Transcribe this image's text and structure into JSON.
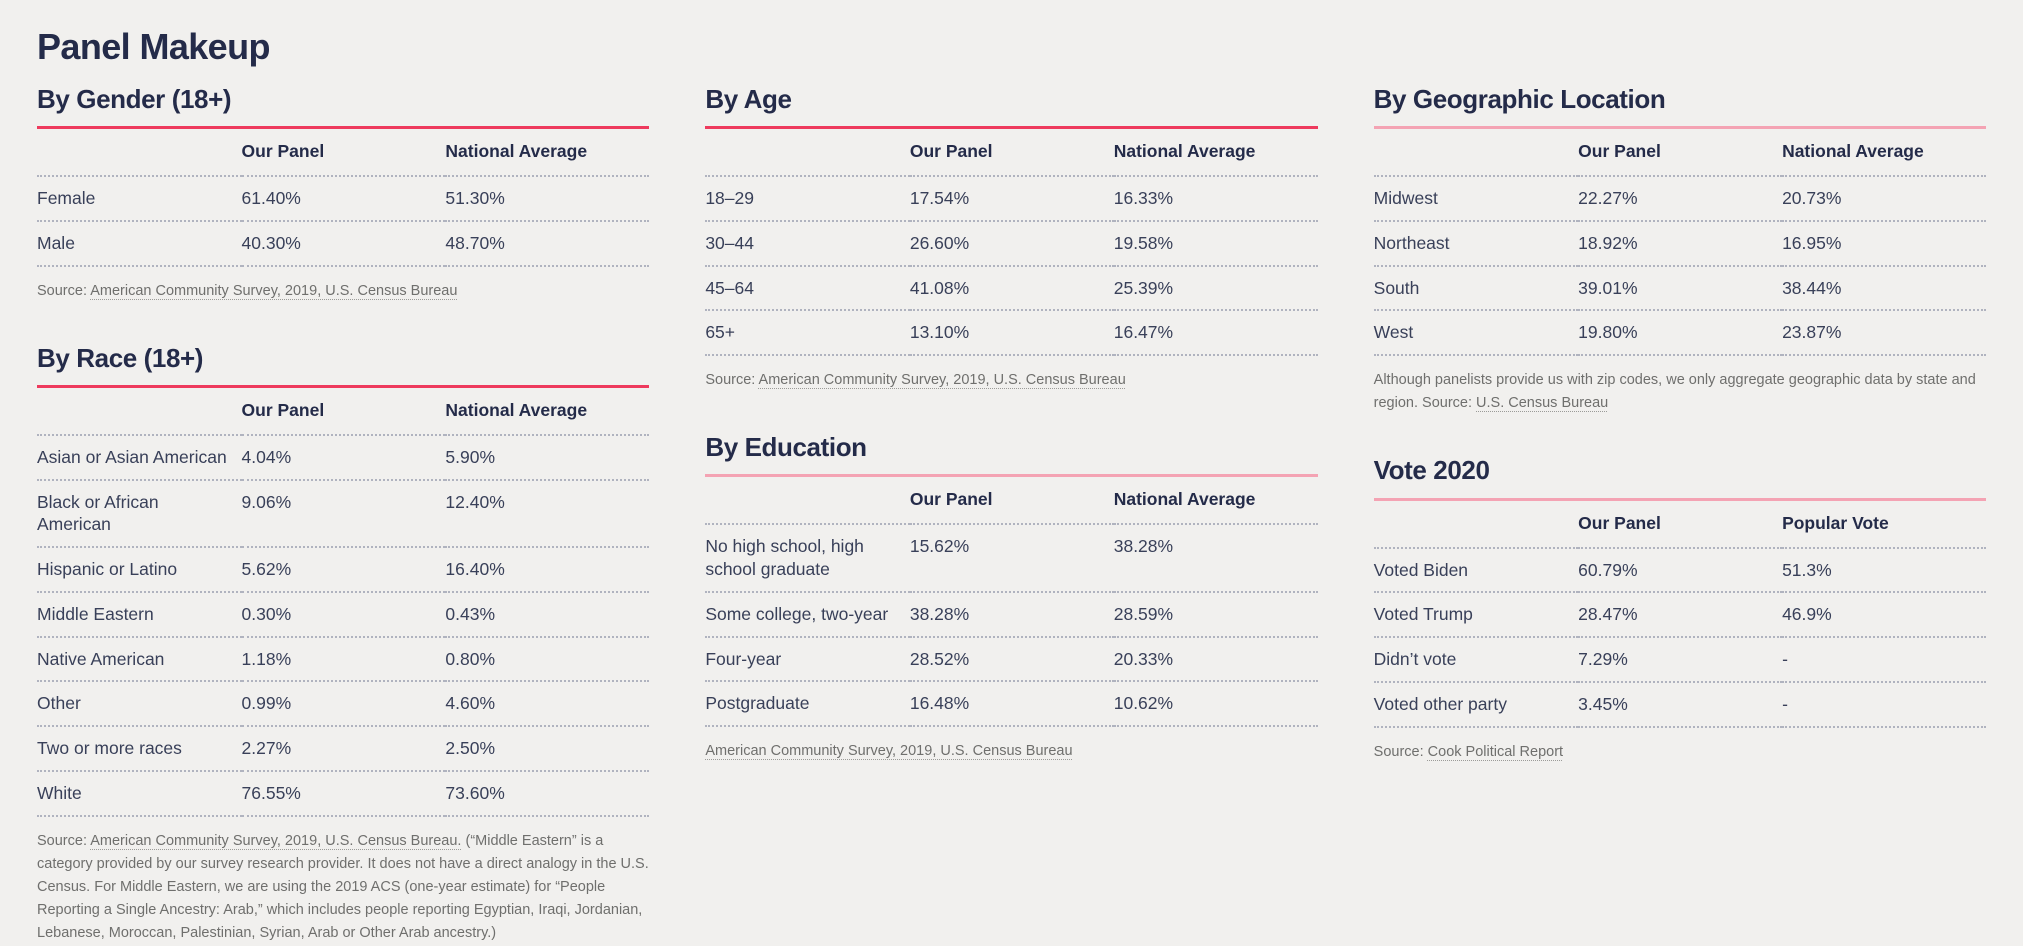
{
  "page": {
    "title": "Panel Makeup",
    "colors": {
      "background": "#f1f0ee",
      "heading": "#242b49",
      "body_text": "#394059",
      "muted_text": "#6f6f6d",
      "rule_red": "#ee3a5d",
      "rule_pink": "#f4a3b3",
      "separator": "#b0b3bf"
    }
  },
  "columns": [
    {
      "sections": [
        "gender",
        "race"
      ]
    },
    {
      "sections": [
        "age",
        "education"
      ]
    },
    {
      "sections": [
        "geography",
        "vote2020"
      ]
    }
  ],
  "sections": {
    "gender": {
      "title": "By Gender (18+)",
      "rule": "red",
      "headers": [
        "Our Panel",
        "National Average"
      ],
      "rows": [
        [
          "Female",
          "61.40%",
          "51.30%"
        ],
        [
          "Male",
          "40.30%",
          "48.70%"
        ]
      ],
      "source": [
        {
          "text": "Source: ",
          "link": false
        },
        {
          "text": "American Community Survey, 2019, U.S. Census Bureau",
          "link": true
        }
      ]
    },
    "race": {
      "title": "By Race (18+)",
      "rule": "red",
      "headers": [
        "Our Panel",
        "National Average"
      ],
      "rows": [
        [
          "Asian or Asian American",
          "4.04%",
          "5.90%"
        ],
        [
          "Black or African American",
          "9.06%",
          "12.40%"
        ],
        [
          "Hispanic or Latino",
          "5.62%",
          "16.40%"
        ],
        [
          "Middle Eastern",
          "0.30%",
          "0.43%"
        ],
        [
          "Native American",
          "1.18%",
          "0.80%"
        ],
        [
          "Other",
          "0.99%",
          "4.60%"
        ],
        [
          "Two or more races",
          "2.27%",
          "2.50%"
        ],
        [
          "White",
          "76.55%",
          "73.60%"
        ]
      ],
      "source": [
        {
          "text": "Source: ",
          "link": false
        },
        {
          "text": "American Community Survey, 2019, U.S. Census Bureau.",
          "link": true
        },
        {
          "text": " (“Middle Eastern” is a category provided by our survey research provider. It does not have a direct analogy in the U.S. Census. For Middle Eastern, we are using the 2019 ACS (one-year estimate) for “People Reporting a Single Ancestry: Arab,” which includes people reporting Egyptian, Iraqi, Jordanian, Lebanese, Moroccan, Palestinian, Syrian, Arab or Other Arab ancestry.)",
          "link": false
        }
      ]
    },
    "age": {
      "title": "By Age",
      "rule": "red",
      "headers": [
        "Our Panel",
        "National Average"
      ],
      "rows": [
        [
          "18–29",
          "17.54%",
          "16.33%"
        ],
        [
          "30–44",
          "26.60%",
          "19.58%"
        ],
        [
          "45–64",
          "41.08%",
          "25.39%"
        ],
        [
          "65+",
          "13.10%",
          "16.47%"
        ]
      ],
      "source": [
        {
          "text": "Source: ",
          "link": false
        },
        {
          "text": "American Community Survey, 2019, U.S. Census Bureau",
          "link": true
        }
      ]
    },
    "education": {
      "title": "By Education",
      "rule": "pink",
      "headers": [
        "Our Panel",
        "National Average"
      ],
      "rows": [
        [
          "No high school, high school graduate",
          "15.62%",
          "38.28%"
        ],
        [
          "Some college, two-year",
          "38.28%",
          "28.59%"
        ],
        [
          "Four-year",
          "28.52%",
          "20.33%"
        ],
        [
          "Postgraduate",
          "16.48%",
          "10.62%"
        ]
      ],
      "source": [
        {
          "text": "American Community Survey, 2019, U.S. Census Bureau",
          "link": true
        }
      ]
    },
    "geography": {
      "title": "By Geographic Location",
      "rule": "pink",
      "headers": [
        "Our Panel",
        "National Average"
      ],
      "rows": [
        [
          "Midwest",
          "22.27%",
          "20.73%"
        ],
        [
          "Northeast",
          "18.92%",
          "16.95%"
        ],
        [
          "South",
          "39.01%",
          "38.44%"
        ],
        [
          "West",
          "19.80%",
          "23.87%"
        ]
      ],
      "source": [
        {
          "text": "Although panelists provide us with zip codes, we only aggregate geographic data by state and region. Source: ",
          "link": false
        },
        {
          "text": "U.S. Census Bureau",
          "link": true
        }
      ]
    },
    "vote2020": {
      "title": "Vote 2020",
      "rule": "pink",
      "headers": [
        "Our Panel",
        "Popular Vote"
      ],
      "rows": [
        [
          "Voted Biden",
          "60.79%",
          "51.3%"
        ],
        [
          "Voted Trump",
          "28.47%",
          "46.9%"
        ],
        [
          "Didn’t vote",
          "7.29%",
          "-"
        ],
        [
          "Voted other party",
          "3.45%",
          "-"
        ]
      ],
      "source": [
        {
          "text": "Source: ",
          "link": false
        },
        {
          "text": "Cook Political Report",
          "link": true
        }
      ]
    }
  }
}
